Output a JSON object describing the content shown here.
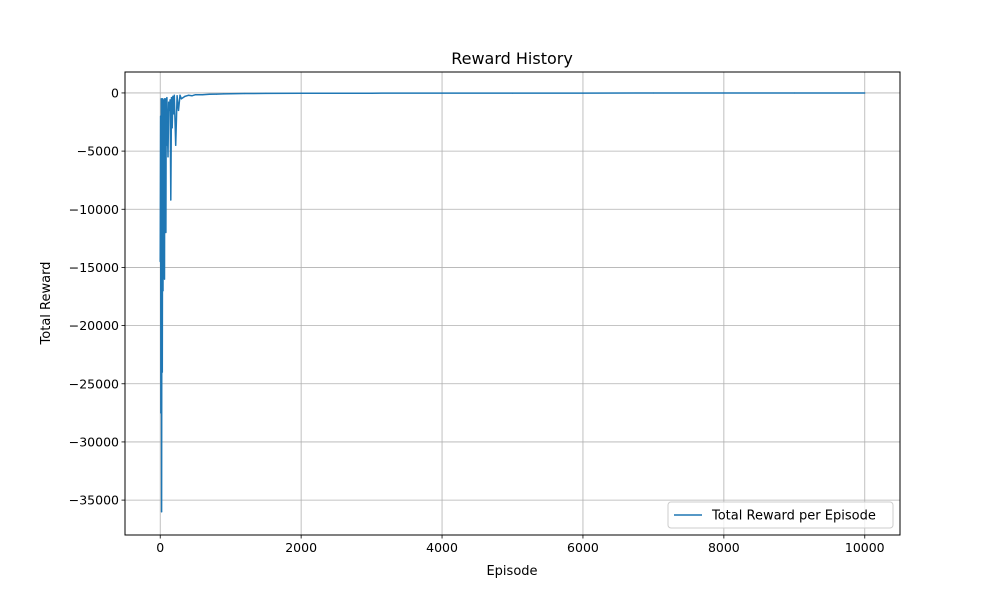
{
  "chart_data": {
    "type": "line",
    "title": "Reward History",
    "xlabel": "Episode",
    "ylabel": "Total Reward",
    "xlim": [
      -500,
      10500
    ],
    "ylim": [
      -38000,
      1800
    ],
    "xticks": [
      0,
      2000,
      4000,
      6000,
      8000,
      10000
    ],
    "yticks": [
      0,
      -5000,
      -10000,
      -15000,
      -20000,
      -25000,
      -30000,
      -35000
    ],
    "grid": true,
    "legend_position": "lower-right",
    "series": [
      {
        "name": "Total Reward per Episode",
        "color": "#1f77b4",
        "x": [
          0,
          5,
          10,
          15,
          20,
          25,
          30,
          35,
          40,
          45,
          50,
          55,
          60,
          65,
          70,
          75,
          80,
          85,
          90,
          95,
          100,
          110,
          120,
          130,
          140,
          150,
          160,
          170,
          180,
          190,
          200,
          220,
          240,
          260,
          280,
          300,
          350,
          400,
          450,
          500,
          600,
          700,
          800,
          900,
          1000,
          1200,
          1500,
          2000,
          3000,
          4000,
          5000,
          6000,
          7000,
          8000,
          9000,
          10000
        ],
        "y": [
          -14500,
          -2000,
          -27500,
          -500,
          -36000,
          -800,
          -24000,
          -500,
          -17000,
          -600,
          -12000,
          -700,
          -16000,
          -500,
          -5500,
          -600,
          -12000,
          -500,
          -4500,
          -400,
          -2500,
          -5500,
          -800,
          -1500,
          -600,
          -9200,
          -400,
          -3000,
          -300,
          -1800,
          -200,
          -4500,
          -250,
          -1500,
          -200,
          -500,
          -300,
          -200,
          -250,
          -150,
          -150,
          -120,
          -100,
          -80,
          -70,
          -50,
          -40,
          -30,
          -20,
          -15,
          -12,
          -10,
          -8,
          -6,
          -5,
          -5
        ]
      }
    ]
  }
}
